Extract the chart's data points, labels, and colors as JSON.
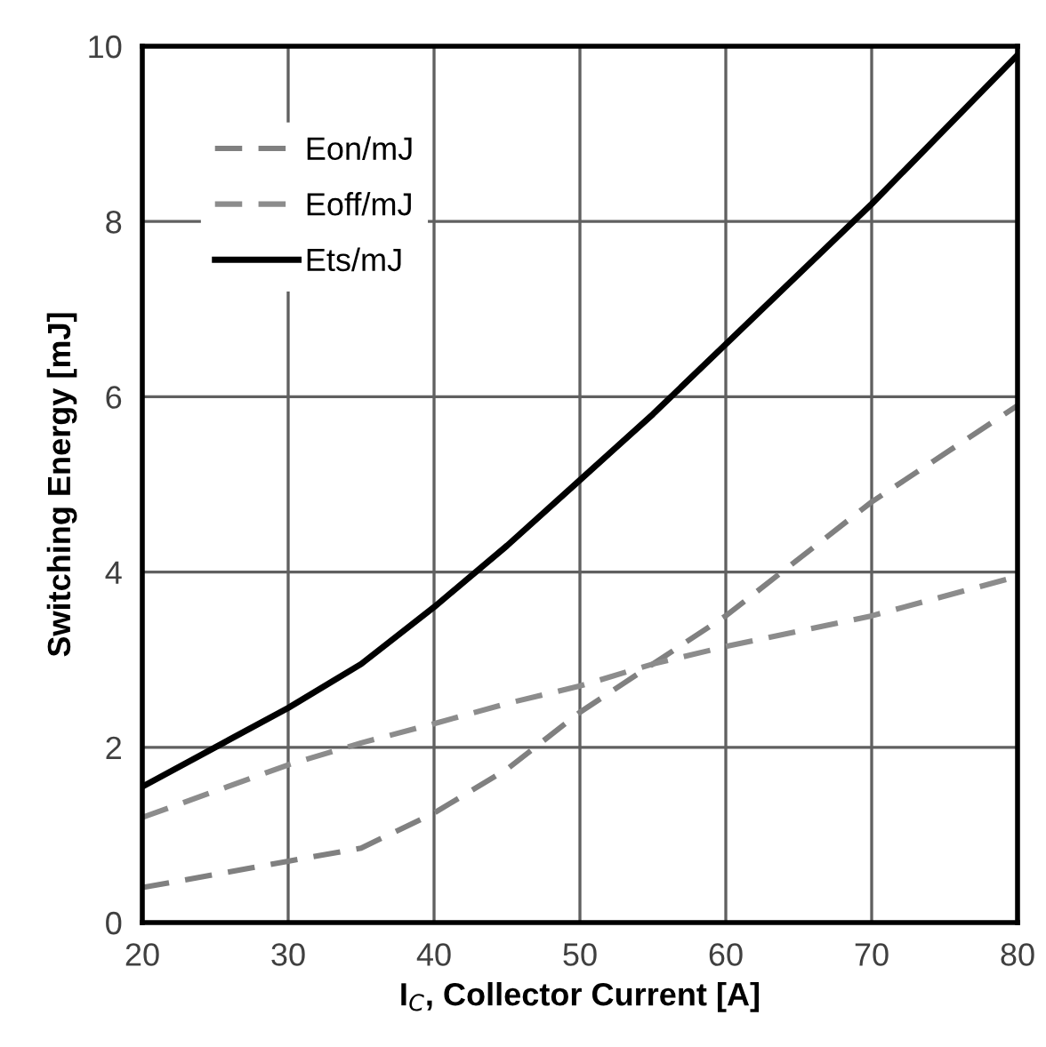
{
  "chart_data": {
    "type": "line",
    "xlabel": "I$_{C}$, Collector Current [A]",
    "ylabel": "Switching Energy [mJ]",
    "x": [
      20,
      30,
      35,
      40,
      45,
      50,
      55,
      60,
      70,
      80
    ],
    "series": [
      {
        "name": "Eon/mJ",
        "color": "#808080",
        "line_style": "dashed",
        "values": [
          0.4,
          0.7,
          0.85,
          1.25,
          1.75,
          2.4,
          2.95,
          3.5,
          4.8,
          5.9
        ]
      },
      {
        "name": "Eoff/mJ",
        "color": "#8c8c8c",
        "line_style": "dashed",
        "values": [
          1.2,
          1.8,
          2.05,
          2.27,
          2.5,
          2.7,
          2.95,
          3.15,
          3.5,
          3.95
        ]
      },
      {
        "name": "Ets/mJ",
        "color": "#000000",
        "line_style": "solid",
        "values": [
          1.55,
          2.45,
          2.95,
          3.6,
          4.3,
          5.05,
          5.8,
          6.6,
          8.2,
          9.9
        ]
      }
    ],
    "xlim": [
      20,
      80
    ],
    "xticks": [
      20,
      30,
      40,
      50,
      60,
      70,
      80
    ],
    "ylim": [
      0,
      10
    ],
    "yticks": [
      0,
      2,
      4,
      6,
      8,
      10
    ],
    "grid": true,
    "legend": "top left",
    "marker": "none"
  }
}
